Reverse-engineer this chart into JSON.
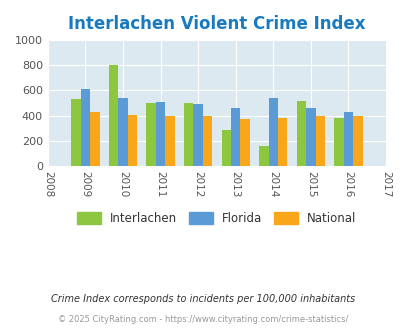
{
  "title": "Interlachen Violent Crime Index",
  "title_color": "#1a7abf",
  "all_years": [
    2008,
    2009,
    2010,
    2011,
    2012,
    2013,
    2014,
    2015,
    2016,
    2017
  ],
  "categories": [
    "Interlachen",
    "Florida",
    "National"
  ],
  "data_years": [
    2009,
    2010,
    2011,
    2012,
    2013,
    2014,
    2015,
    2016
  ],
  "interlachen": [
    530,
    800,
    500,
    498,
    287,
    155,
    520,
    378
  ],
  "florida": [
    610,
    543,
    512,
    490,
    457,
    543,
    462,
    432
  ],
  "national": [
    432,
    406,
    394,
    394,
    372,
    380,
    394,
    400
  ],
  "bar_colors": [
    "#8dc63f",
    "#5b9bd5",
    "#faa61a"
  ],
  "bg_color": "#dce9f0",
  "ylim": [
    0,
    1000
  ],
  "yticks": [
    0,
    200,
    400,
    600,
    800,
    1000
  ],
  "footnote1": "Crime Index corresponds to incidents per 100,000 inhabitants",
  "footnote2": "© 2025 CityRating.com - https://www.cityrating.com/crime-statistics/",
  "footnote1_color": "#333333",
  "footnote2_color": "#999999"
}
